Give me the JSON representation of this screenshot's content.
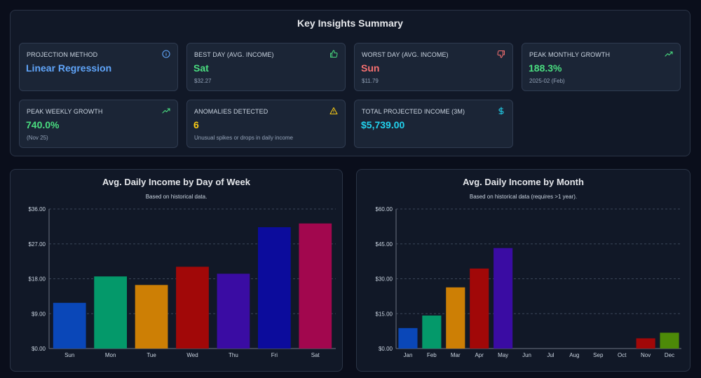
{
  "summary": {
    "title": "Key Insights Summary",
    "cards": [
      {
        "label": "PROJECTION METHOD",
        "value": "Linear Regression",
        "sub": "",
        "icon": "info-icon",
        "color": "#60a5fa",
        "icon_color": "#60a5fa"
      },
      {
        "label": "BEST DAY (AVG. INCOME)",
        "value": "Sat",
        "sub": "$32.27",
        "icon": "thumbs-up-icon",
        "color": "#4ade80",
        "icon_color": "#4ade80"
      },
      {
        "label": "WORST DAY (AVG. INCOME)",
        "value": "Sun",
        "sub": "$11.79",
        "icon": "thumbs-down-icon",
        "color": "#f87171",
        "icon_color": "#f87171"
      },
      {
        "label": "PEAK MONTHLY GROWTH",
        "value": "188.3%",
        "sub": "2025-02 (Feb)",
        "icon": "trending-up-icon",
        "color": "#4ade80",
        "icon_color": "#4ade80"
      },
      {
        "label": "PEAK WEEKLY GROWTH",
        "value": "740.0%",
        "sub": "(Nov 25)",
        "icon": "trending-up-icon",
        "color": "#4ade80",
        "icon_color": "#4ade80"
      },
      {
        "label": "ANOMALIES DETECTED",
        "value": "6",
        "sub": "Unusual spikes or drops in daily income",
        "icon": "warning-icon",
        "color": "#facc15",
        "icon_color": "#facc15"
      },
      {
        "label": "TOTAL PROJECTED INCOME (3M)",
        "value": "$5,739.00",
        "sub": "",
        "icon": "dollar-icon",
        "color": "#22d3ee",
        "icon_color": "#22d3ee"
      }
    ]
  },
  "chart_data": [
    {
      "type": "bar",
      "title": "Avg. Daily Income by Day of Week",
      "subtitle": "Based on historical data.",
      "categories": [
        "Sun",
        "Mon",
        "Tue",
        "Wed",
        "Thu",
        "Fri",
        "Sat"
      ],
      "values": [
        11.79,
        18.6,
        16.4,
        21.1,
        19.3,
        31.3,
        32.27
      ],
      "colors": [
        "#0a47b8",
        "#04996a",
        "#cd7f05",
        "#a10808",
        "#3a0ca3",
        "#0c0c9c",
        "#a2074e"
      ],
      "yticks": [
        "$0.00",
        "$9.00",
        "$18.00",
        "$27.00",
        "$36.00"
      ],
      "ylim": [
        0,
        36
      ],
      "grid": true
    },
    {
      "type": "bar",
      "title": "Avg. Daily Income by Month",
      "subtitle": "Based on historical data (requires >1 year).",
      "categories": [
        "Jan",
        "Feb",
        "Mar",
        "Apr",
        "May",
        "Jun",
        "Jul",
        "Aug",
        "Sep",
        "Oct",
        "Nov",
        "Dec"
      ],
      "values": [
        8.8,
        14.2,
        26.3,
        34.4,
        43.2,
        0,
        0,
        0,
        0,
        0,
        4.4,
        6.8
      ],
      "colors": [
        "#0a47b8",
        "#04996a",
        "#cd7f05",
        "#a10808",
        "#3a0ca3",
        "#0c0c9c",
        "#a2074e",
        "#0a47b8",
        "#04996a",
        "#cd7f05",
        "#a10808",
        "#4d8a08"
      ],
      "yticks": [
        "$0.00",
        "$15.00",
        "$30.00",
        "$45.00",
        "$60.00"
      ],
      "ylim": [
        0,
        60
      ],
      "grid": true
    }
  ]
}
